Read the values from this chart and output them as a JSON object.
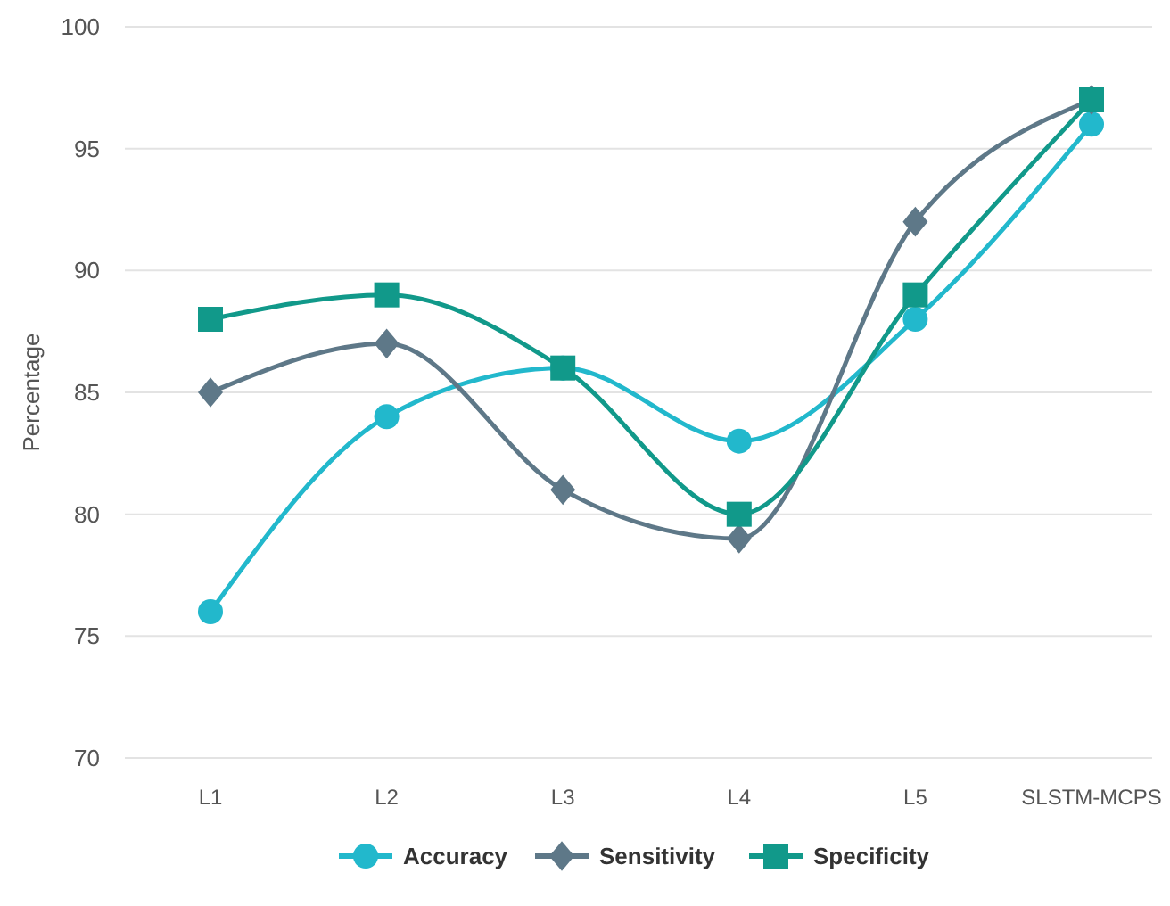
{
  "chart_data": {
    "type": "line",
    "ylabel": "Percentage",
    "categories": [
      "L1",
      "L2",
      "L3",
      "L4",
      "L5",
      "SLSTM-MCPS"
    ],
    "ylim": [
      70,
      100
    ],
    "yticks": [
      70,
      75,
      80,
      85,
      90,
      95,
      100
    ],
    "grid": "y",
    "legend": "bottom",
    "series": [
      {
        "name": "Accuracy",
        "color": "#22b8cc",
        "marker": "circle",
        "values": [
          76,
          84,
          86,
          83,
          88,
          96
        ]
      },
      {
        "name": "Sensitivity",
        "color": "#5e7888",
        "marker": "diamond",
        "values": [
          85,
          87,
          81,
          79,
          92,
          97
        ]
      },
      {
        "name": "Specificity",
        "color": "#11998a",
        "marker": "square",
        "values": [
          88,
          89,
          86,
          80,
          89,
          97
        ]
      }
    ]
  }
}
